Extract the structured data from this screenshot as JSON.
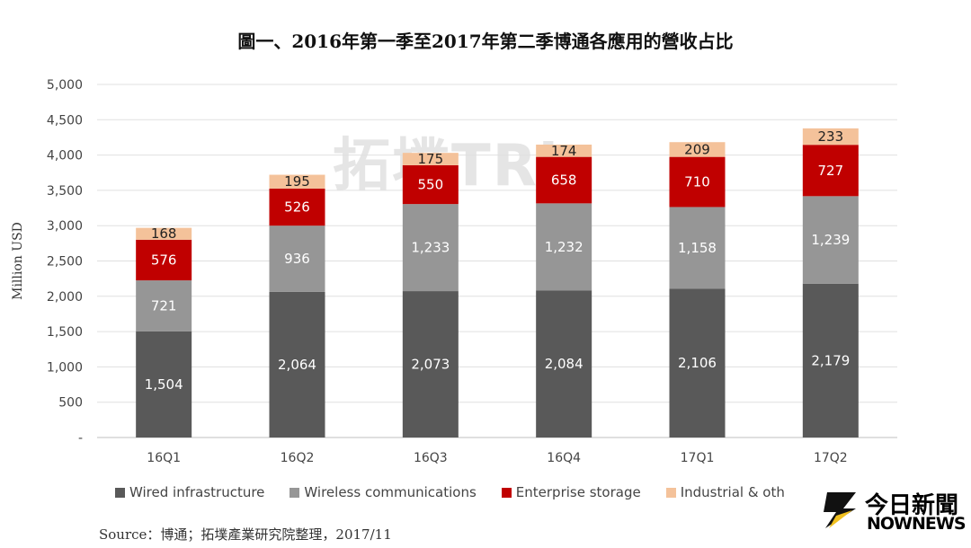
{
  "chart_data": {
    "type": "bar",
    "stacked": true,
    "title": "圖一、2016年第一季至2017年第二季博通各應用的營收占比",
    "xlabel": "",
    "ylabel": "Million USD",
    "ylim": [
      0,
      5000
    ],
    "yticks": [
      "-",
      "500",
      "1,000",
      "1,500",
      "2,000",
      "2,500",
      "3,000",
      "3,500",
      "4,000",
      "4,500",
      "5,000"
    ],
    "grid": true,
    "legend_position": "bottom",
    "categories": [
      "16Q1",
      "16Q2",
      "16Q3",
      "16Q4",
      "17Q1",
      "17Q2"
    ],
    "series": [
      {
        "name": "Wired infrastructure",
        "color": "#595959",
        "values": [
          1504,
          2064,
          2073,
          2084,
          2106,
          2179
        ],
        "labels": [
          "1,504",
          "2,064",
          "2,073",
          "2,084",
          "2,106",
          "2,179"
        ]
      },
      {
        "name": "Wireless communications",
        "color": "#969696",
        "values": [
          721,
          936,
          1233,
          1232,
          1158,
          1239
        ],
        "labels": [
          "721",
          "936",
          "1,233",
          "1,232",
          "1,158",
          "1,239"
        ]
      },
      {
        "name": "Enterprise storage",
        "color": "#c00000",
        "values": [
          576,
          526,
          550,
          658,
          710,
          727
        ],
        "labels": [
          "576",
          "526",
          "550",
          "658",
          "710",
          "727"
        ]
      },
      {
        "name": "Industrial & others",
        "color": "#f4c29a",
        "values": [
          168,
          195,
          175,
          174,
          209,
          233
        ],
        "labels": [
          "168",
          "195",
          "175",
          "174",
          "209",
          "233"
        ]
      }
    ]
  },
  "legend_visible": [
    "Wired infrastructure",
    "Wireless communications",
    "Enterprise storage",
    "Industrial & oth"
  ],
  "source": "Source：博通；拓墣產業研究院整理，2017/11",
  "watermark": "拓墣TRi",
  "logo": {
    "cn": "今日新聞",
    "en": "NOWNEWS"
  }
}
